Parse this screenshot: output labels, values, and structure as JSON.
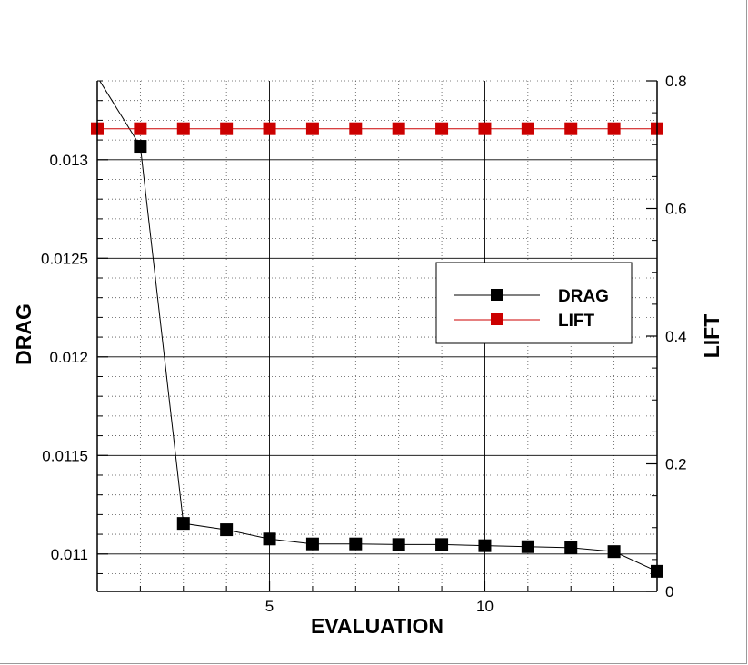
{
  "chart_data": {
    "type": "line",
    "xlabel": "EVALUATION",
    "ylabel_left": "DRAG",
    "ylabel_right": "LIFT",
    "xlim": [
      1,
      14
    ],
    "ylim_left": [
      0.01081,
      0.0134
    ],
    "ylim_right": [
      0,
      0.8
    ],
    "x_major_ticks": [
      5,
      10
    ],
    "x_tick_labels": [
      "5",
      "10"
    ],
    "y_left_major_ticks": [
      0.011,
      0.0115,
      0.012,
      0.0125,
      0.013
    ],
    "y_left_tick_labels": [
      "0.011",
      "0.0115",
      "0.012",
      "0.0125",
      "0.013"
    ],
    "y_right_major_ticks": [
      0,
      0.2,
      0.4,
      0.6,
      0.8
    ],
    "y_right_tick_labels": [
      "0",
      "0.2",
      "0.4",
      "0.6",
      "0.8"
    ],
    "grid": "on",
    "legend_placement": "center-right",
    "legend": [
      "DRAG",
      "LIFT"
    ],
    "series": [
      {
        "name": "DRAG",
        "axis": "left",
        "color": "#000000",
        "x": [
          1,
          2,
          3,
          4,
          5,
          6,
          7,
          8,
          9,
          10,
          11,
          12,
          13,
          14
        ],
        "values": [
          0.01342,
          0.013068,
          0.011155,
          0.011123,
          0.011076,
          0.011051,
          0.011051,
          0.011048,
          0.011048,
          0.011042,
          0.011037,
          0.011032,
          0.011012,
          0.010912
        ],
        "markers": [
          false,
          true,
          true,
          true,
          true,
          true,
          true,
          true,
          true,
          true,
          true,
          true,
          true,
          true
        ]
      },
      {
        "name": "LIFT",
        "axis": "right",
        "color": "#cc0000",
        "x": [
          1,
          2,
          3,
          4,
          5,
          6,
          7,
          8,
          9,
          10,
          11,
          12,
          13,
          14
        ],
        "values": [
          0.725,
          0.725,
          0.725,
          0.725,
          0.725,
          0.725,
          0.725,
          0.725,
          0.725,
          0.725,
          0.725,
          0.725,
          0.725,
          0.725
        ],
        "markers": [
          true,
          true,
          true,
          true,
          true,
          true,
          true,
          true,
          true,
          true,
          true,
          true,
          true,
          true
        ]
      }
    ]
  }
}
